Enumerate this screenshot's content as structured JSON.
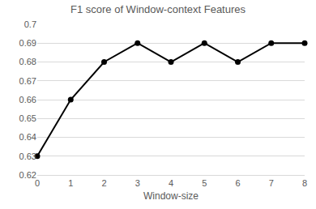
{
  "chart_data": {
    "type": "line",
    "title": "F1 score of Window-context Features",
    "x_label": "Window-size",
    "x": [
      0,
      1,
      2,
      3,
      4,
      5,
      6,
      7,
      8
    ],
    "values": [
      0.63,
      0.66,
      0.68,
      0.69,
      0.68,
      0.69,
      0.68,
      0.69,
      0.69
    ],
    "color": "#000000",
    "marker": "circle",
    "line_style": "solid",
    "xlim": [
      0,
      8
    ],
    "xticks": [
      0,
      1,
      2,
      3,
      4,
      5,
      6,
      7,
      8
    ],
    "ylim": [
      0.62,
      0.7
    ],
    "yticks": [
      0.62,
      0.63,
      0.64,
      0.65,
      0.66,
      0.67,
      0.68,
      0.69,
      0.7
    ],
    "grid": true
  }
}
